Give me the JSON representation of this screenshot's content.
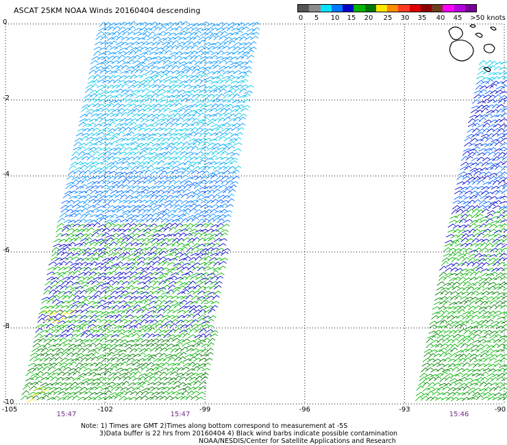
{
  "title": "ASCAT 25KM NOAA Winds 20160404 descending",
  "colorbar": {
    "labels": [
      "0",
      "5",
      "10",
      "15",
      "20",
      "25",
      "30",
      "35",
      "40",
      "45",
      ">50 knots"
    ],
    "colors": [
      "#555555",
      "#8c8c8c",
      "#00e5ff",
      "#0078ff",
      "#0000c8",
      "#00b400",
      "#007800",
      "#ffe600",
      "#ff8c00",
      "#ff3c1e",
      "#dc0000",
      "#8c0000",
      "#6e3c1e",
      "#ff00ff",
      "#b400dc",
      "#780096"
    ]
  },
  "axes": {
    "y_ticks": [
      "0",
      "-2",
      "-4",
      "-6",
      "-8",
      "-10"
    ],
    "x_ticks": [
      "-105",
      "-102",
      "-99",
      "-96",
      "-93",
      "-90"
    ],
    "xlim": [
      -105,
      -90
    ],
    "ylim": [
      -10,
      0
    ]
  },
  "times": [
    "15:47",
    "15:47",
    "15:46"
  ],
  "note": {
    "line1": "Note: 1) Times are GMT 2)Times along bottom correspond to measurement at -5S",
    "line2": "3)Data buffer is 22 hrs from 20160404 4) Black wind barbs indicate possible contamination",
    "line3": "NOAA/NESDIS/Center for Satellite Applications and Research"
  }
}
